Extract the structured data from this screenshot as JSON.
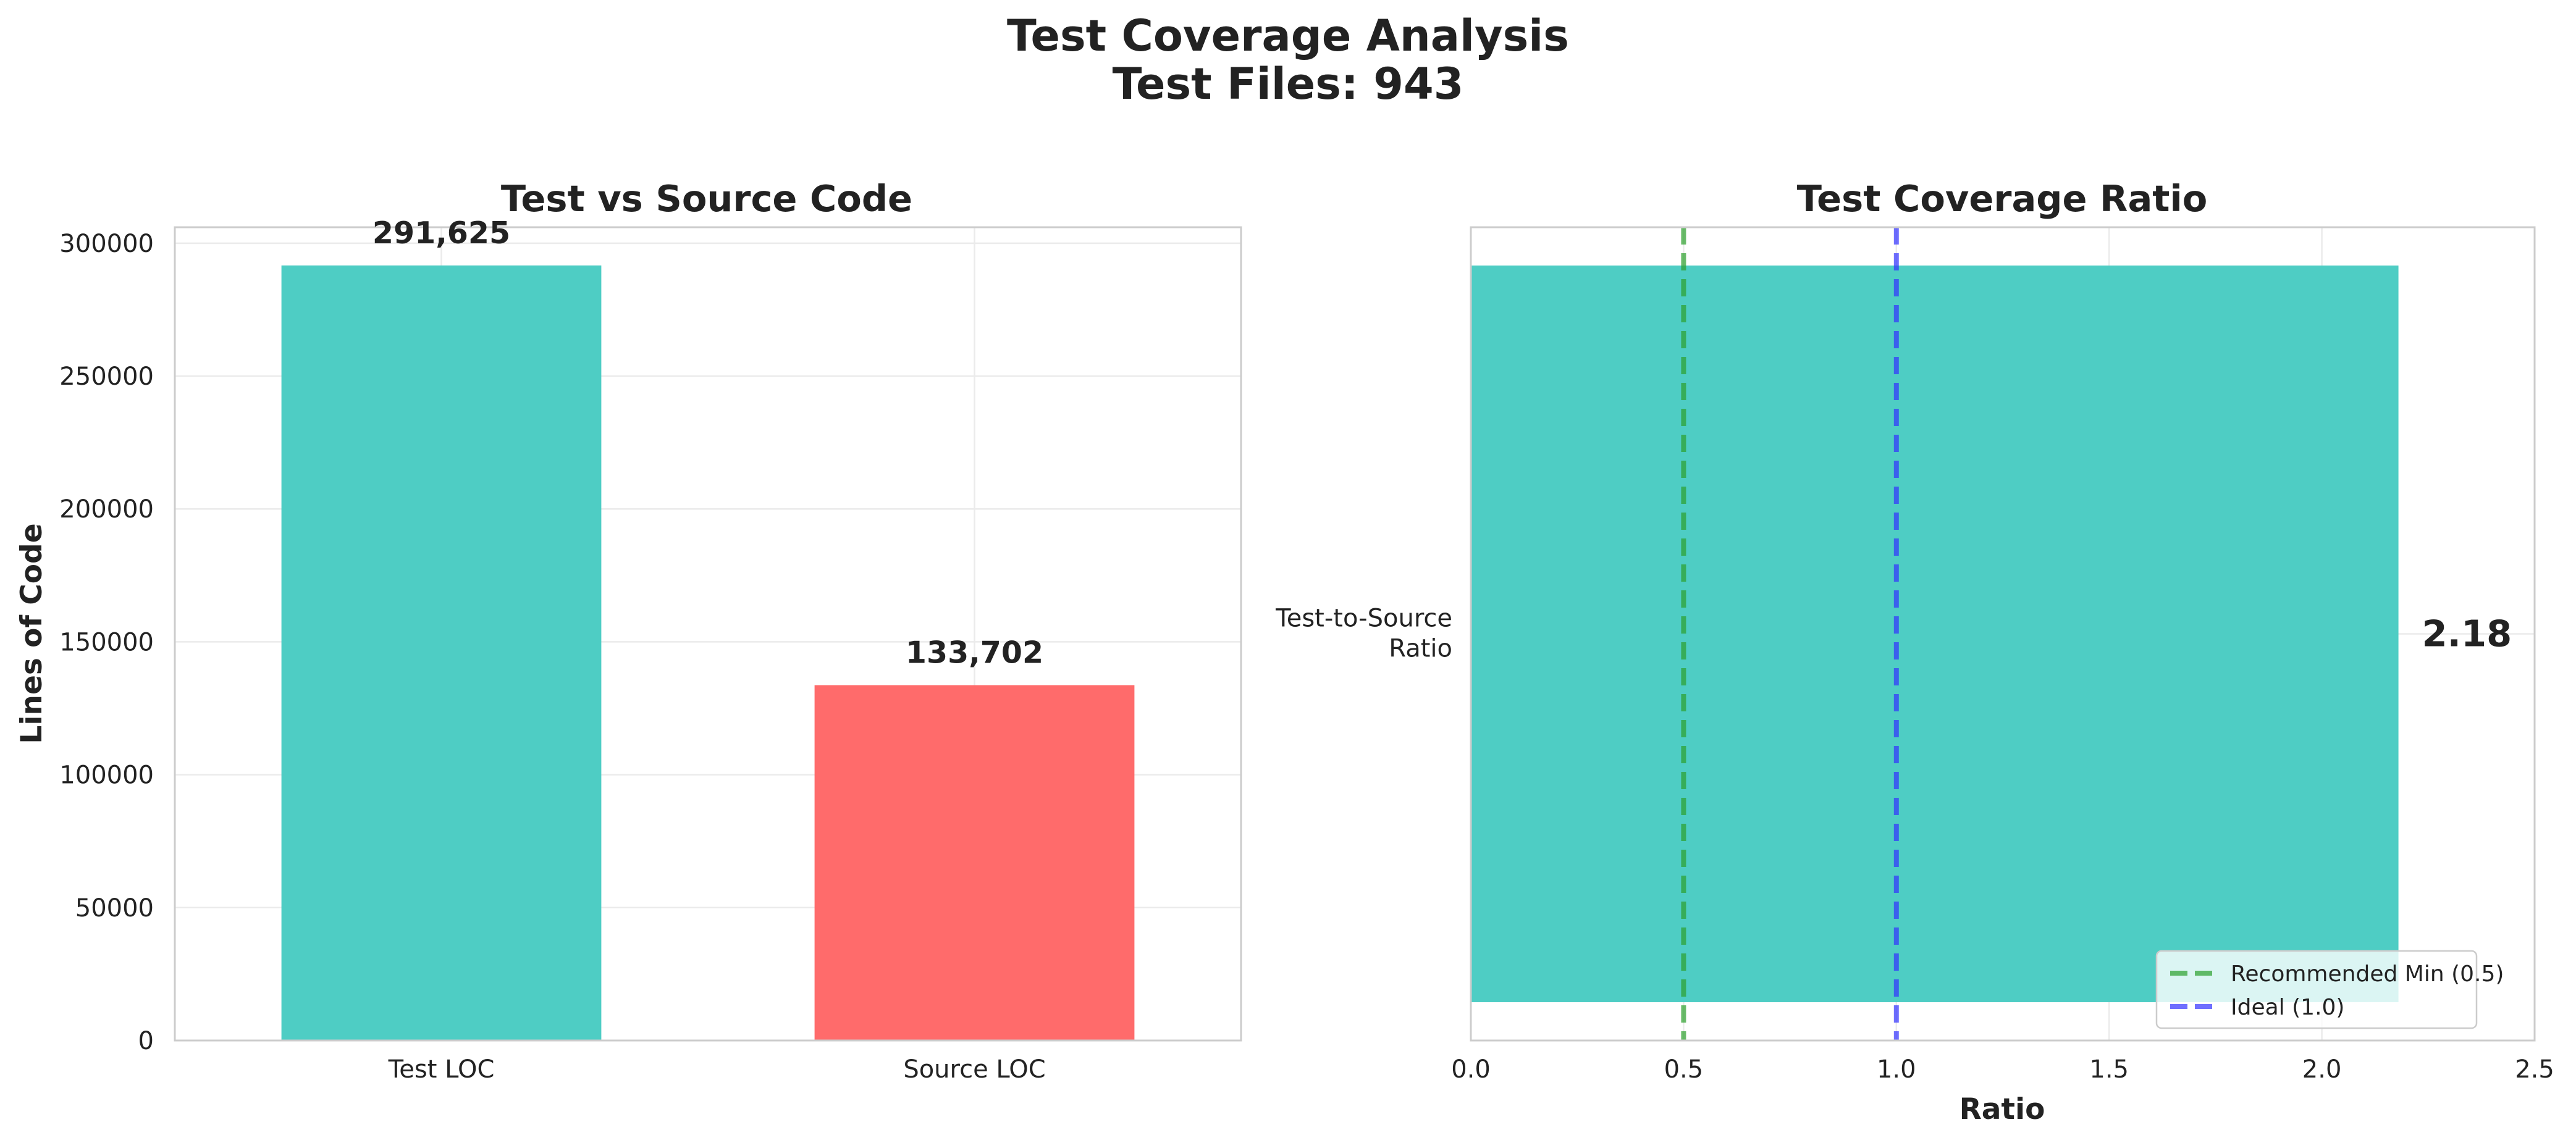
{
  "figure": {
    "title_line1": "Test Coverage Analysis",
    "title_line2": "Test Files: 943"
  },
  "chart_data": [
    {
      "type": "bar",
      "title": "Test vs Source Code",
      "xlabel": "",
      "ylabel": "Lines of Code",
      "categories": [
        "Test LOC",
        "Source LOC"
      ],
      "values": [
        291625,
        133702
      ],
      "value_labels": [
        "291,625",
        "133,702"
      ],
      "colors": [
        "#4ECDC4",
        "#FF6B6B"
      ],
      "ylim": [
        0,
        306000
      ],
      "yticks": [
        0,
        50000,
        100000,
        150000,
        200000,
        250000,
        300000
      ],
      "ytick_labels": [
        "0",
        "50000",
        "100000",
        "150000",
        "200000",
        "250000",
        "300000"
      ],
      "grid": true
    },
    {
      "type": "bar",
      "orientation": "horizontal",
      "title": "Test Coverage Ratio",
      "xlabel": "Ratio",
      "ylabel": "",
      "categories": [
        "Test-to-Source Ratio"
      ],
      "category_label_lines": [
        "Test-to-Source",
        "Ratio"
      ],
      "values": [
        2.18
      ],
      "value_labels": [
        "2.18"
      ],
      "colors": [
        "#4ECDC4"
      ],
      "xlim": [
        0,
        2.5
      ],
      "xticks": [
        0,
        0.5,
        1,
        1.5,
        2,
        2.5
      ],
      "xtick_labels": [
        "0.0",
        "0.5",
        "1.0",
        "1.5",
        "2.0",
        "2.5"
      ],
      "reference_lines": [
        {
          "name": "Recommended Min (0.5)",
          "x": 0.5,
          "color": "#2CA02C"
        },
        {
          "name": "Ideal (1.0)",
          "x": 1.0,
          "color": "#3333FF"
        }
      ],
      "legend": "lower-right",
      "grid": true
    }
  ]
}
